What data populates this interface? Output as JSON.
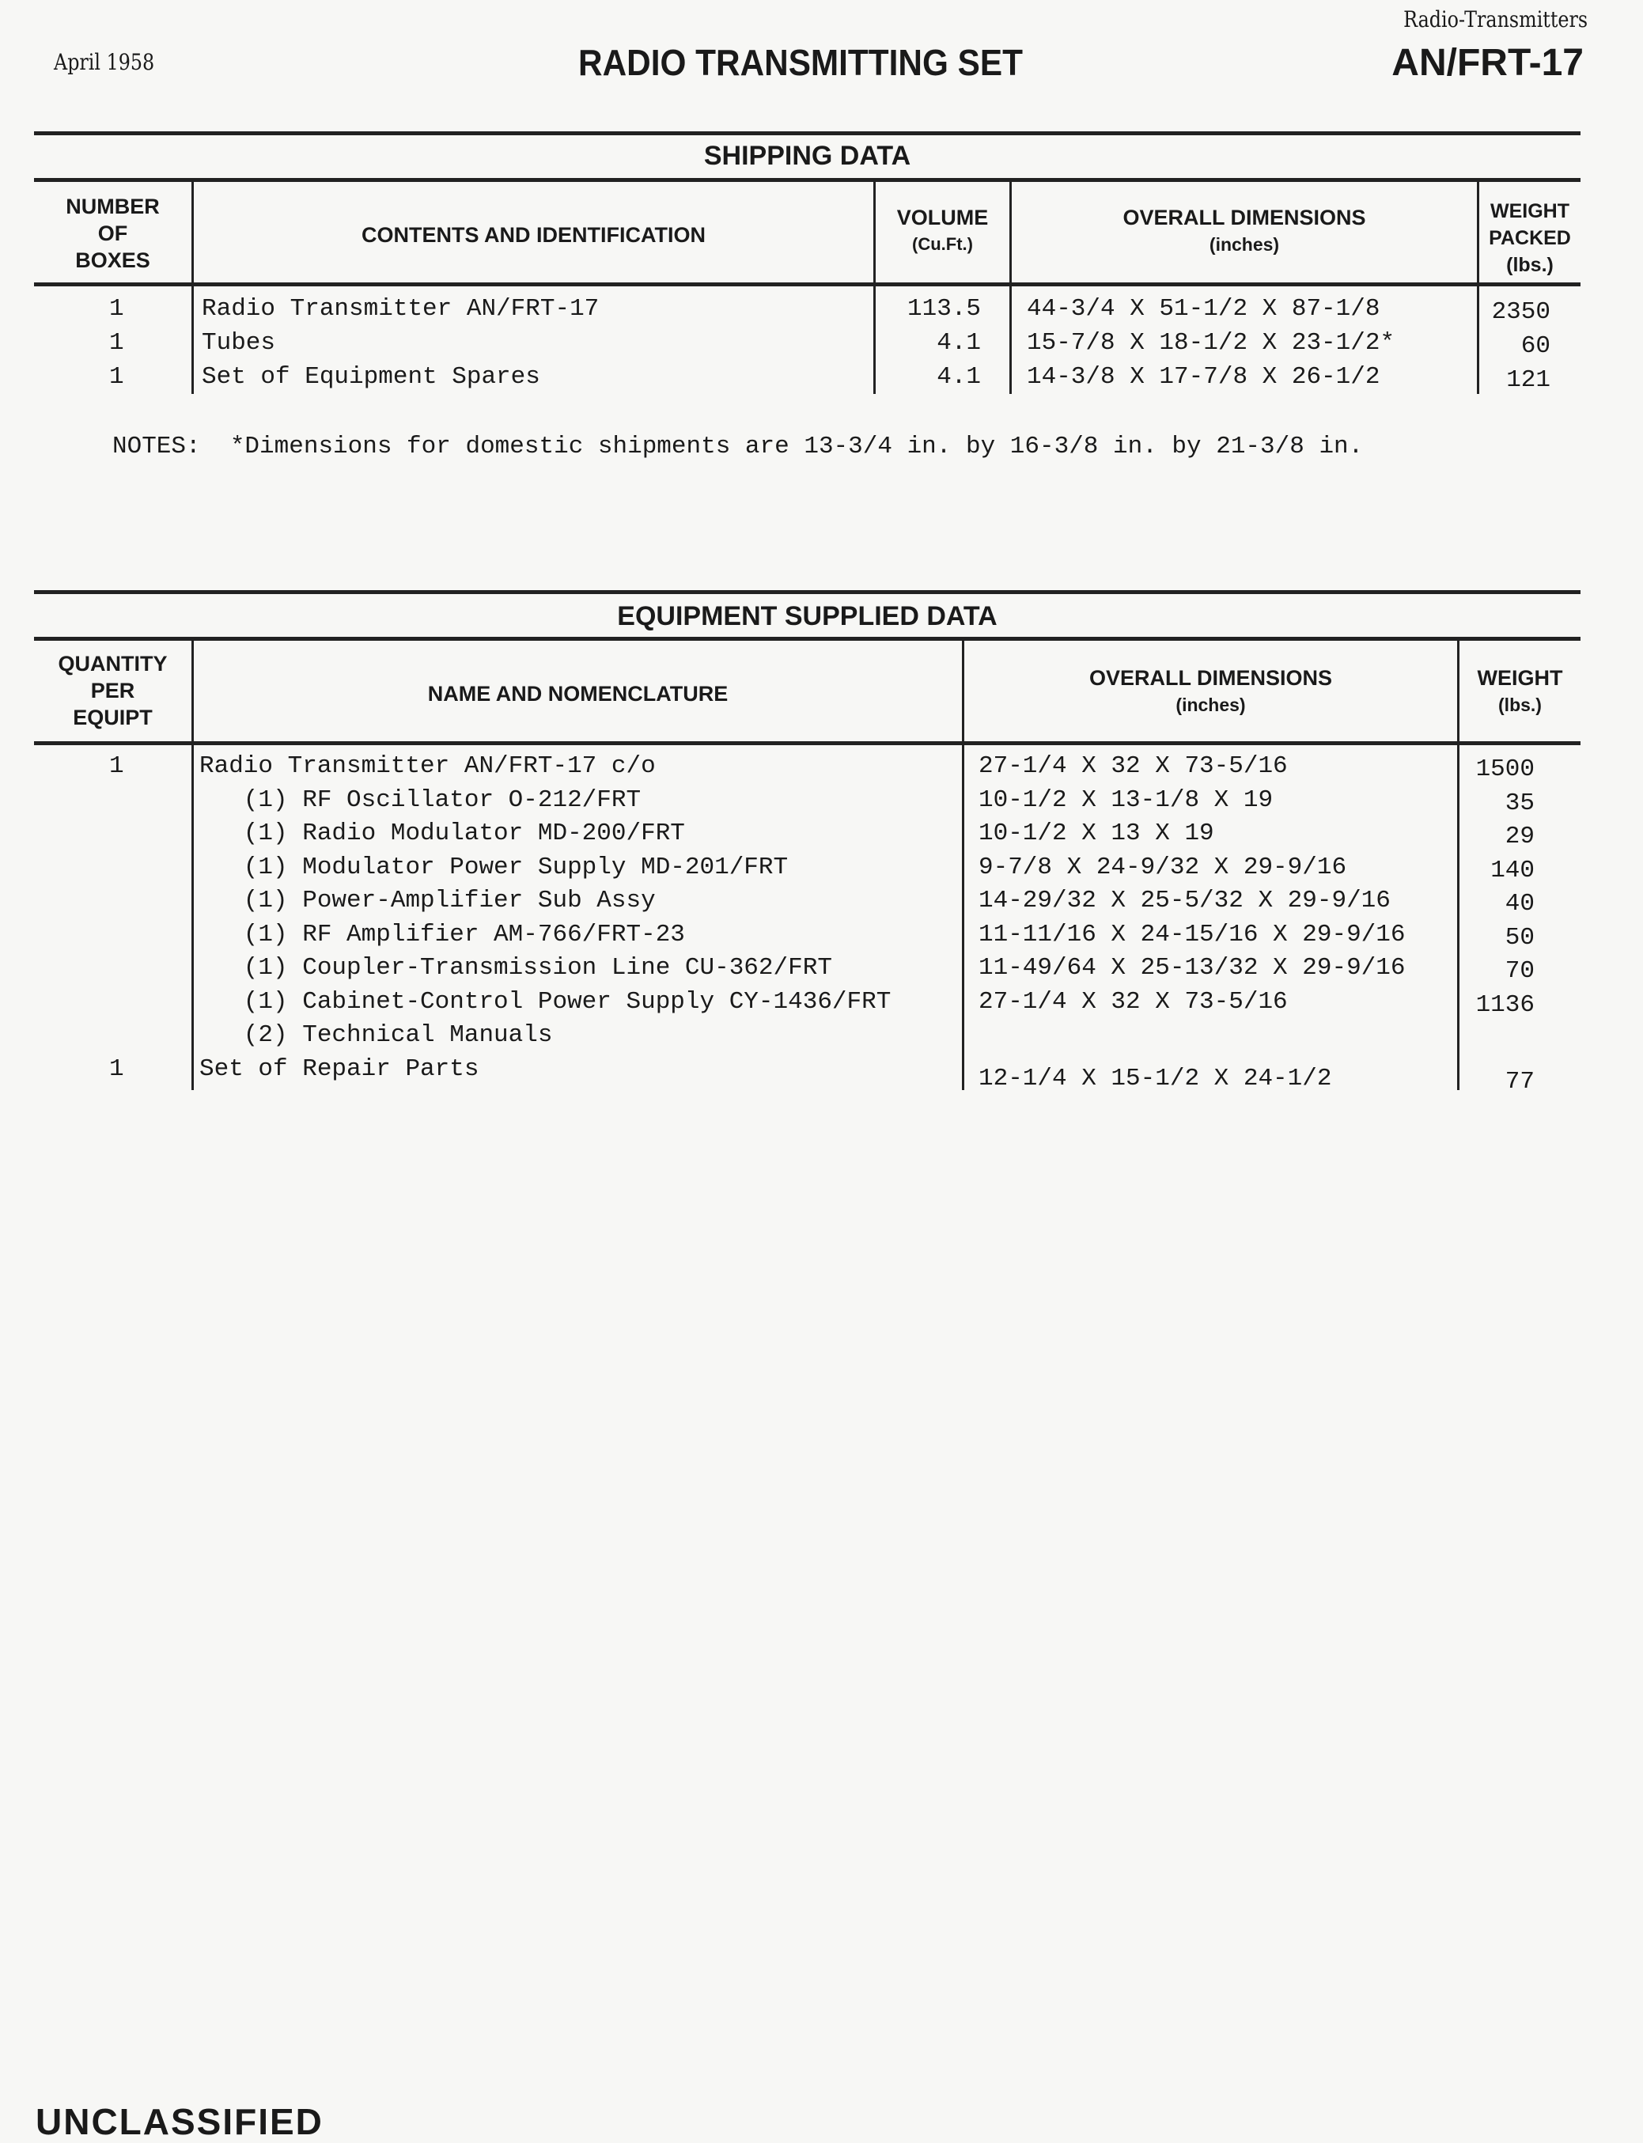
{
  "header": {
    "category": "Radio-Transmitters",
    "date": "April 1958",
    "title": "RADIO TRANSMITTING SET",
    "model": "AN/FRT-17"
  },
  "shipping": {
    "title": "SHIPPING DATA",
    "columns": [
      "NUMBER OF BOXES",
      "CONTENTS AND IDENTIFICATION",
      "VOLUME (Cu.Ft.)",
      "OVERALL DIMENSIONS (inches)",
      "WEIGHT PACKED (lbs.)"
    ],
    "col_lines": {
      "number": [
        "NUMBER",
        "OF",
        "BOXES"
      ],
      "contents": "CONTENTS AND IDENTIFICATION",
      "volume": [
        "VOLUME",
        "(Cu.Ft.)"
      ],
      "dims": [
        "OVERALL DIMENSIONS",
        "(inches)"
      ],
      "weight": [
        "WEIGHT",
        "PACKED",
        "(lbs.)"
      ]
    },
    "rows": [
      {
        "count": "1",
        "contents": "Radio Transmitter AN/FRT-17",
        "volume": "113.5",
        "dims": "44-3/4 X 51-1/2 X 87-1/8",
        "weight": "2350"
      },
      {
        "count": "1",
        "contents": "Tubes",
        "volume": "4.1",
        "dims": "15-7/8 X 18-1/2 X 23-1/2*",
        "weight": "60"
      },
      {
        "count": "1",
        "contents": "Set of Equipment Spares",
        "volume": "4.1",
        "dims": "14-3/8 X 17-7/8 X 26-1/2",
        "weight": "121"
      }
    ],
    "notes": "NOTES:  *Dimensions for domestic shipments are 13-3/4 in. by 16-3/8 in. by 21-3/8 in."
  },
  "equipment": {
    "title": "EQUIPMENT SUPPLIED DATA",
    "col_lines": {
      "qty": [
        "QUANTITY",
        "PER",
        "EQUIPT"
      ],
      "name": "NAME AND NOMENCLATURE",
      "dims": [
        "OVERALL DIMENSIONS",
        "(inches)"
      ],
      "weight": [
        "WEIGHT",
        "(lbs.)"
      ]
    },
    "rows": [
      {
        "qty": "1",
        "name": "Radio Transmitter AN/FRT-17 c/o",
        "dims": "27-1/4 X 32 X 73-5/16",
        "weight": "1500"
      },
      {
        "qty": "",
        "name": "   (1) RF Oscillator O-212/FRT",
        "dims": "10-1/2 X 13-1/8 X 19",
        "weight": "35"
      },
      {
        "qty": "",
        "name": "   (1) Radio Modulator MD-200/FRT",
        "dims": "10-1/2 X 13 X 19",
        "weight": "29"
      },
      {
        "qty": "",
        "name": "   (1) Modulator Power Supply MD-201/FRT",
        "dims": "9-7/8 X 24-9/32 X 29-9/16",
        "weight": "140"
      },
      {
        "qty": "",
        "name": "   (1) Power-Amplifier Sub Assy",
        "dims": "14-29/32 X 25-5/32 X 29-9/16",
        "weight": "40"
      },
      {
        "qty": "",
        "name": "   (1) RF Amplifier AM-766/FRT-23",
        "dims": "11-11/16 X 24-15/16 X 29-9/16",
        "weight": "50"
      },
      {
        "qty": "",
        "name": "   (1) Coupler-Transmission Line CU-362/FRT",
        "dims": "11-49/64 X 25-13/32 X 29-9/16",
        "weight": "70"
      },
      {
        "qty": "",
        "name": "   (1) Cabinet-Control Power Supply CY-1436/FRT",
        "dims": "27-1/4 X 32 X 73-5/16",
        "weight": "1136"
      },
      {
        "qty": "",
        "name": "   (2) Technical Manuals",
        "dims": "",
        "weight": ""
      },
      {
        "qty": "1",
        "name": "Set of Repair Parts",
        "dims": "12-1/4 X 15-1/2 X 24-1/2",
        "weight": "77"
      }
    ]
  },
  "footer": {
    "classification": "UNCLASSIFIED"
  }
}
